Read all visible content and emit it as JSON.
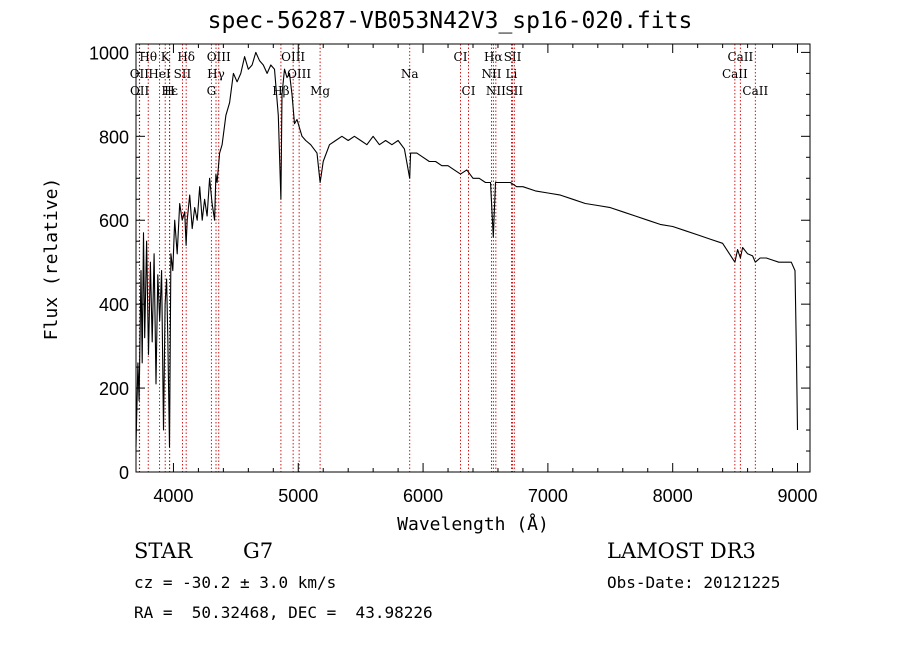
{
  "chart_data": {
    "type": "line",
    "title": "spec-56287-VB053N42V3_sp16-020.fits",
    "xlabel": "Wavelength (Å)",
    "ylabel": "Flux (relative)",
    "xlim": [
      3700,
      9100
    ],
    "ylim": [
      0,
      1020
    ],
    "xticks": [
      4000,
      5000,
      6000,
      7000,
      8000,
      9000
    ],
    "yticks": [
      0,
      200,
      400,
      600,
      800,
      1000
    ],
    "line_color": "#000000",
    "marker_color": "#cc0000",
    "spectrum": {
      "x": [
        3700,
        3715,
        3725,
        3740,
        3750,
        3760,
        3770,
        3785,
        3800,
        3815,
        3830,
        3845,
        3860,
        3875,
        3890,
        3905,
        3920,
        3933,
        3945,
        3955,
        3968,
        3980,
        3995,
        4010,
        4030,
        4050,
        4070,
        4090,
        4101,
        4110,
        4130,
        4150,
        4170,
        4190,
        4210,
        4230,
        4250,
        4270,
        4290,
        4310,
        4330,
        4340,
        4350,
        4370,
        4390,
        4420,
        4450,
        4480,
        4510,
        4540,
        4570,
        4600,
        4630,
        4660,
        4690,
        4720,
        4750,
        4780,
        4810,
        4840,
        4861,
        4870,
        4890,
        4910,
        4930,
        4950,
        4970,
        4990,
        5010,
        5030,
        5060,
        5100,
        5150,
        5175,
        5185,
        5200,
        5250,
        5300,
        5350,
        5400,
        5450,
        5500,
        5550,
        5600,
        5650,
        5700,
        5750,
        5800,
        5850,
        5893,
        5900,
        5950,
        6000,
        6050,
        6100,
        6150,
        6200,
        6250,
        6300,
        6350,
        6400,
        6450,
        6500,
        6540,
        6563,
        6580,
        6600,
        6650,
        6700,
        6750,
        6800,
        6900,
        7000,
        7100,
        7200,
        7300,
        7400,
        7500,
        7600,
        7700,
        7800,
        7900,
        8000,
        8100,
        8200,
        8300,
        8400,
        8498,
        8520,
        8542,
        8560,
        8600,
        8640,
        8662,
        8700,
        8750,
        8800,
        8850,
        8900,
        8950,
        8980,
        8990,
        9000
      ],
      "y": [
        60,
        260,
        170,
        480,
        260,
        570,
        320,
        550,
        280,
        500,
        310,
        520,
        210,
        470,
        360,
        480,
        100,
        400,
        460,
        320,
        60,
        520,
        480,
        600,
        520,
        640,
        600,
        620,
        540,
        600,
        660,
        580,
        630,
        600,
        680,
        600,
        650,
        610,
        700,
        640,
        600,
        710,
        690,
        760,
        780,
        850,
        880,
        950,
        930,
        950,
        990,
        960,
        970,
        1000,
        980,
        970,
        950,
        970,
        960,
        850,
        650,
        900,
        960,
        940,
        950,
        900,
        830,
        840,
        820,
        800,
        790,
        780,
        760,
        690,
        710,
        740,
        780,
        790,
        800,
        790,
        800,
        790,
        780,
        800,
        780,
        790,
        780,
        790,
        770,
        700,
        760,
        760,
        750,
        740,
        740,
        730,
        730,
        720,
        710,
        720,
        700,
        700,
        690,
        690,
        560,
        690,
        690,
        690,
        690,
        680,
        680,
        670,
        665,
        660,
        650,
        640,
        635,
        630,
        620,
        610,
        600,
        590,
        585,
        575,
        565,
        555,
        545,
        500,
        530,
        510,
        535,
        520,
        515,
        500,
        510,
        510,
        505,
        500,
        500,
        500,
        480,
        300,
        100
      ]
    },
    "lines": [
      {
        "label": "Hθ",
        "wavelength": 3798,
        "row": 1
      },
      {
        "label": "K",
        "wavelength": 3934,
        "row": 1
      },
      {
        "label": "Hδ",
        "wavelength": 4102,
        "row": 1
      },
      {
        "label": "OIII",
        "wavelength": 4363,
        "row": 1
      },
      {
        "label": "OIII",
        "wavelength": 4959,
        "row": 1
      },
      {
        "label": "CI",
        "wavelength": 6300,
        "row": 1
      },
      {
        "label": "Hα",
        "wavelength": 6563,
        "row": 1
      },
      {
        "label": "SII",
        "wavelength": 6717,
        "row": 1
      },
      {
        "label": "CaII",
        "wavelength": 8542,
        "row": 1
      },
      {
        "label": "OII",
        "wavelength": 3727,
        "row": 2
      },
      {
        "label": "HeI",
        "wavelength": 3889,
        "row": 2
      },
      {
        "label": "SII",
        "wavelength": 4072,
        "row": 2
      },
      {
        "label": "Hγ",
        "wavelength": 4341,
        "row": 2
      },
      {
        "label": "OIII",
        "wavelength": 5007,
        "row": 2
      },
      {
        "label": "Na",
        "wavelength": 5893,
        "row": 2
      },
      {
        "label": "NII",
        "wavelength": 6548,
        "row": 2
      },
      {
        "label": "Li",
        "wavelength": 6708,
        "row": 2
      },
      {
        "label": "CaII",
        "wavelength": 8498,
        "row": 2
      },
      {
        "label": "OII",
        "wavelength": 3729,
        "row": 3
      },
      {
        "label": "Hε",
        "wavelength": 3970,
        "row": 3
      },
      {
        "label": "H",
        "wavelength": 3968,
        "row": 3
      },
      {
        "label": "G",
        "wavelength": 4304,
        "row": 3
      },
      {
        "label": "Hβ",
        "wavelength": 4861,
        "row": 3
      },
      {
        "label": "Mg",
        "wavelength": 5175,
        "row": 3
      },
      {
        "label": "CI",
        "wavelength": 6364,
        "row": 3
      },
      {
        "label": "NII",
        "wavelength": 6583,
        "row": 3
      },
      {
        "label": "SII",
        "wavelength": 6731,
        "row": 3
      },
      {
        "label": "CaII",
        "wavelength": 8662,
        "row": 3
      }
    ]
  },
  "info": {
    "class_label": "STAR",
    "subclass": "G7",
    "survey": "LAMOST DR3",
    "cz": "cz = -30.2 ± 3.0 km/s",
    "obs_date": "Obs-Date: 20121225",
    "coords": "RA =  50.32468, DEC =  43.98226"
  }
}
